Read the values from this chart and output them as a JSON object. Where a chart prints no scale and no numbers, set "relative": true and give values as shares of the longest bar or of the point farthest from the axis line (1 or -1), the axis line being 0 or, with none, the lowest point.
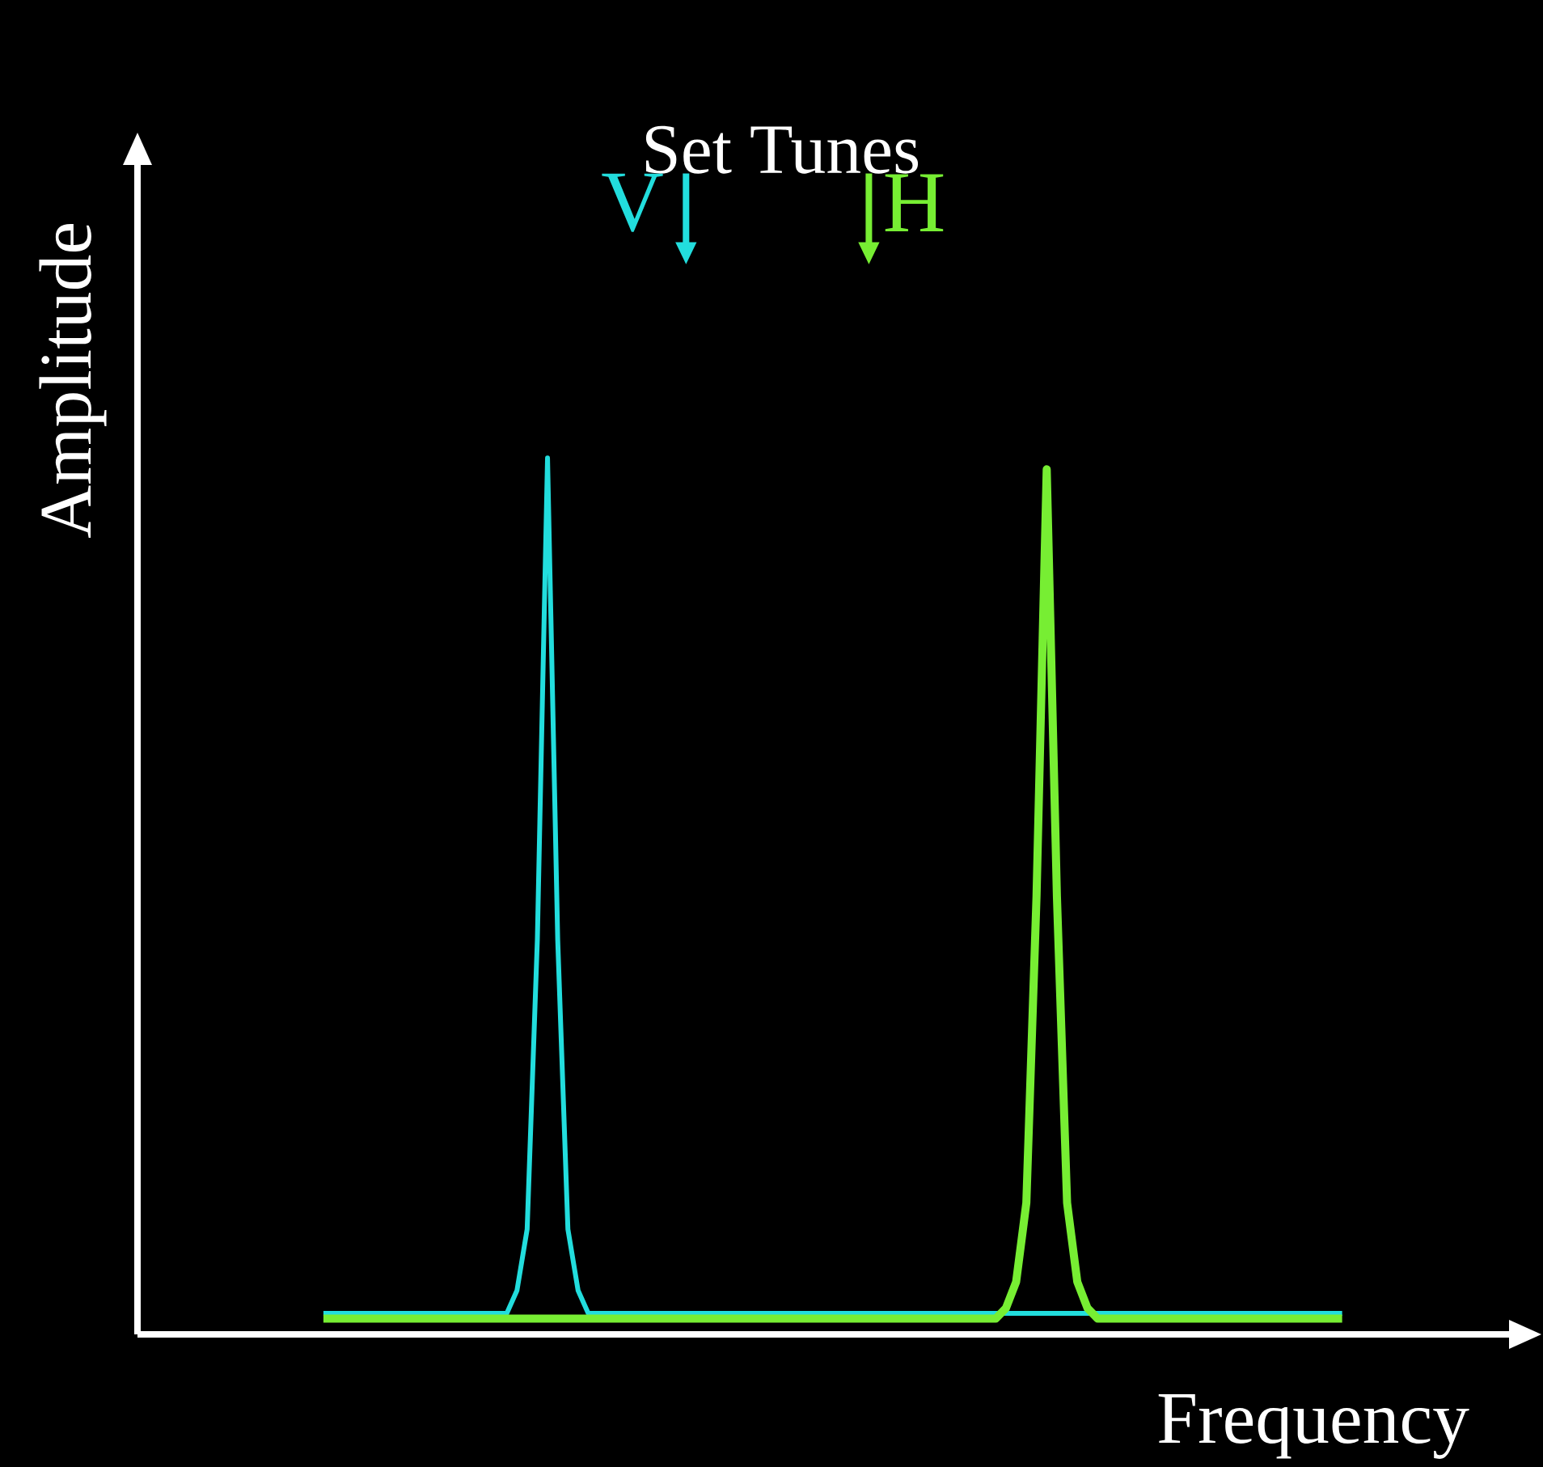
{
  "chart_data": {
    "type": "line",
    "relative": true,
    "xlabel": "Frequency",
    "ylabel": "Amplitude",
    "annotations": [
      "Set Tunes",
      "V",
      "H"
    ],
    "categories": [
      null,
      null,
      null,
      null,
      null,
      null,
      null,
      null,
      null,
      null,
      null,
      null,
      null,
      null,
      null,
      null,
      null,
      null,
      null,
      null,
      null,
      null,
      null,
      null,
      null,
      null,
      null,
      null,
      null,
      null,
      null,
      null,
      null,
      null,
      null,
      null,
      null,
      null,
      null,
      null,
      null,
      null,
      null,
      null,
      null,
      null,
      null,
      null,
      null,
      null,
      null,
      null,
      null,
      null,
      null,
      null,
      null,
      null,
      null,
      null,
      null,
      null,
      null,
      null,
      null,
      null,
      null,
      null,
      null,
      null,
      null,
      null,
      null,
      null,
      null,
      null,
      null,
      null,
      null,
      null,
      null,
      null,
      null,
      null,
      null,
      null,
      null,
      null,
      null,
      null,
      null,
      null,
      null,
      null,
      null,
      null,
      null,
      null,
      null,
      null,
      null
    ],
    "series": [
      {
        "color": "#22dddd",
        "values": [
          0.024,
          0.024,
          0.024,
          0.024,
          0.024,
          0.024,
          0.024,
          0.024,
          0.024,
          0.024,
          0.024,
          0.024,
          0.024,
          0.024,
          0.024,
          0.024,
          0.024,
          0.024,
          0.024,
          0.05,
          0.12,
          0.45,
          1,
          0.45,
          0.12,
          0.05,
          0.024,
          0.024,
          0.024,
          0.024,
          0.024,
          0.024,
          0.024,
          0.024,
          0.024,
          0.024,
          0.024,
          0.024,
          0.024,
          0.024,
          0.024,
          0.024,
          0.024,
          0.024,
          0.024,
          0.024,
          0.024,
          0.024,
          0.024,
          0.024,
          0.024,
          0.024,
          0.024,
          0.024,
          0.024,
          0.024,
          0.024,
          0.024,
          0.024,
          0.024,
          0.024,
          0.024,
          0.024,
          0.024,
          0.024,
          0.024,
          0.024,
          0.024,
          0.024,
          0.024,
          0.024,
          0.024,
          0.024,
          0.024,
          0.024,
          0.024,
          0.024,
          0.024,
          0.024,
          0.024,
          0.024,
          0.024,
          0.024,
          0.024,
          0.024,
          0.024,
          0.024,
          0.024,
          0.024,
          0.024,
          0.024,
          0.024,
          0.024,
          0.024,
          0.024,
          0.024,
          0.024,
          0.024,
          0.024,
          0.024,
          0.024
        ]
      },
      {
        "color": "#77ee33",
        "values": [
          0.018,
          0.018,
          0.018,
          0.018,
          0.018,
          0.018,
          0.018,
          0.018,
          0.018,
          0.018,
          0.018,
          0.018,
          0.018,
          0.018,
          0.018,
          0.018,
          0.018,
          0.018,
          0.018,
          0.018,
          0.018,
          0.018,
          0.018,
          0.018,
          0.018,
          0.018,
          0.018,
          0.018,
          0.018,
          0.018,
          0.018,
          0.018,
          0.018,
          0.018,
          0.018,
          0.018,
          0.018,
          0.018,
          0.018,
          0.018,
          0.018,
          0.018,
          0.018,
          0.018,
          0.018,
          0.018,
          0.018,
          0.018,
          0.018,
          0.018,
          0.018,
          0.018,
          0.018,
          0.018,
          0.018,
          0.018,
          0.018,
          0.018,
          0.018,
          0.018,
          0.018,
          0.018,
          0.018,
          0.018,
          0.018,
          0.018,
          0.018,
          0.03,
          0.06,
          0.15,
          0.5,
          0.987,
          0.5,
          0.15,
          0.06,
          0.03,
          0.018,
          0.018,
          0.018,
          0.018,
          0.018,
          0.018,
          0.018,
          0.018,
          0.018,
          0.018,
          0.018,
          0.018,
          0.018,
          0.018,
          0.018,
          0.018,
          0.018,
          0.018,
          0.018,
          0.018,
          0.018,
          0.018,
          0.018,
          0.018,
          0.018
        ]
      }
    ]
  }
}
